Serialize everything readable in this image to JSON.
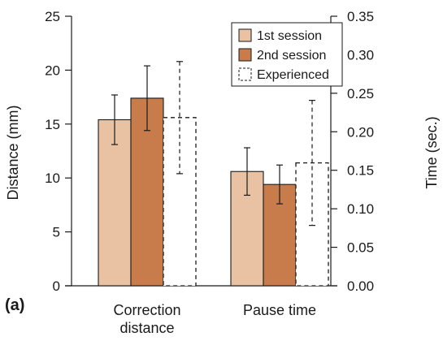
{
  "chart_data": {
    "type": "bar",
    "panel_label": "(a)",
    "categories": [
      [
        "Correction",
        "distance"
      ],
      [
        "Pause time"
      ]
    ],
    "series": [
      {
        "name": "1st session",
        "color": "#e9c2a4",
        "style": "solid",
        "values": [
          15.4,
          10.6
        ],
        "errors": [
          2.3,
          2.2
        ]
      },
      {
        "name": "2nd session",
        "color": "#c87c4c",
        "style": "solid",
        "values": [
          17.4,
          9.4
        ],
        "errors": [
          3.0,
          1.8
        ]
      },
      {
        "name": "Experienced",
        "color": "#ffffff",
        "style": "dashed",
        "values": [
          15.6,
          11.4
        ],
        "errors": [
          5.2,
          5.8
        ]
      }
    ],
    "ylabel_left": "Distance (mm)",
    "ylim_left": [
      0,
      25
    ],
    "yticks_left": [
      "0",
      "5",
      "10",
      "15",
      "20",
      "25"
    ],
    "ylabel_right": "Time (sec.)",
    "ylim_right": [
      0,
      0.35
    ],
    "yticks_right": [
      "0.00",
      "0.05",
      "0.10",
      "0.15",
      "0.20",
      "0.25",
      "0.30",
      "0.35"
    ],
    "legend_position": "top-right",
    "grid": false
  }
}
